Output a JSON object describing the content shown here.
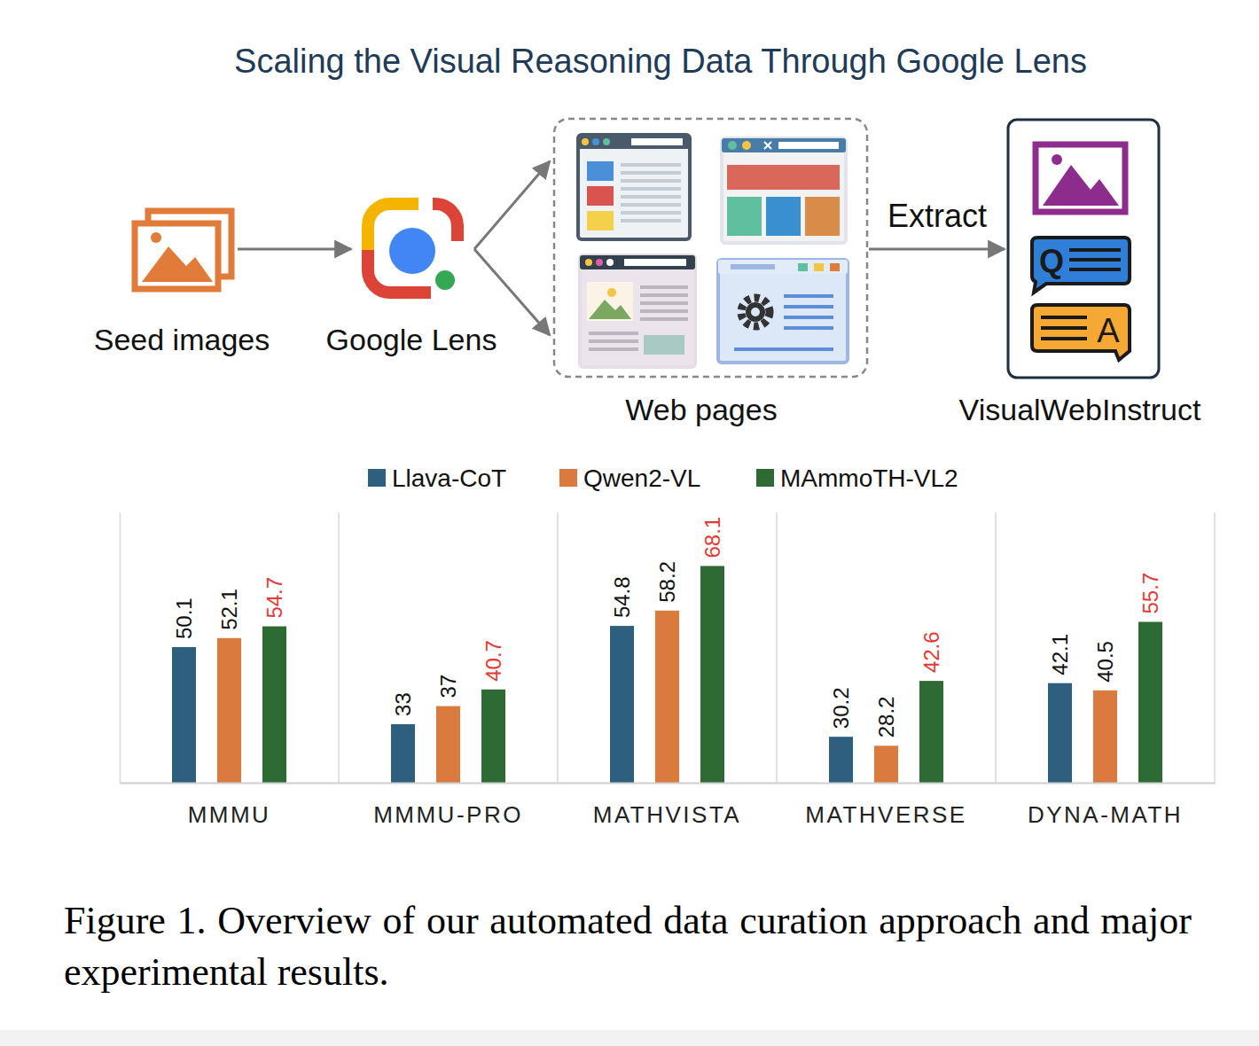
{
  "diagram": {
    "title": "Scaling the Visual Reasoning Data Through Google Lens",
    "nodes": [
      {
        "label": "Seed images"
      },
      {
        "label": "Google Lens"
      },
      {
        "label": "Web pages"
      },
      {
        "label": "VisualWebInstruct"
      }
    ],
    "edges": [
      {
        "from": 0,
        "to": 1
      },
      {
        "from": 1,
        "to": 2
      },
      {
        "from": 2,
        "to": 3,
        "label": "Extract"
      }
    ],
    "icon_texts": [
      "Q",
      "A"
    ]
  },
  "chart_data": {
    "type": "bar",
    "categories": [
      "MMMU",
      "MMMU-PRO",
      "MATHVISTA",
      "MATHVERSE",
      "DYNA-MATH"
    ],
    "series": [
      {
        "name": "Llava-CoT",
        "color": "#2e5f7f",
        "values": [
          50.1,
          33,
          54.8,
          30.2,
          42.1
        ]
      },
      {
        "name": "Qwen2-VL",
        "color": "#db7a3e",
        "values": [
          52.1,
          37,
          58.2,
          28.2,
          40.5
        ]
      },
      {
        "name": "MAmmoTH-VL2",
        "color": "#2e6b34",
        "values": [
          54.7,
          40.7,
          68.1,
          42.6,
          55.7
        ]
      }
    ],
    "ylim": [
      20,
      80
    ],
    "data_labels": true,
    "tick_labels": "x",
    "legend": "top",
    "grid": false
  },
  "caption": "Figure 1. Overview of our automated data curation approach and major experimental results."
}
